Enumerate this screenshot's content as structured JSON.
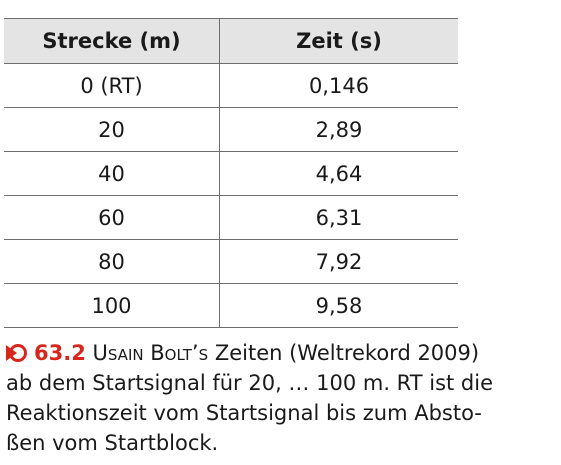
{
  "table": {
    "header": [
      "Strecke (m)",
      "Zeit (s)"
    ],
    "rows": [
      [
        "0 (RT)",
        "0,146"
      ],
      [
        "20",
        "2,89"
      ],
      [
        "40",
        "4,64"
      ],
      [
        "60",
        "6,31"
      ],
      [
        "80",
        "7,92"
      ],
      [
        "100",
        "9,58"
      ]
    ]
  },
  "caption": {
    "number": "63.2",
    "name": "Usain Bolt’s",
    "lines": [
      "Zeiten (Weltrekord 2009)",
      "ab dem Startsignal für 20, … 100 m. RT ist die",
      "Reaktionszeit vom Startsignal bis zum Absto-",
      "ßen vom Startblock."
    ]
  }
}
